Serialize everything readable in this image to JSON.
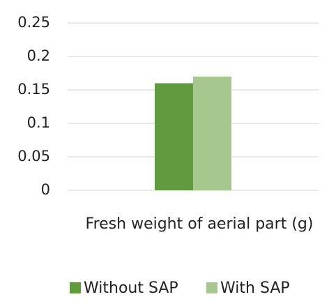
{
  "chart_data": {
    "type": "bar",
    "categories": [
      "Fresh weight of aerial part (g)"
    ],
    "series": [
      {
        "name": "Without SAP",
        "color": "#629a3f",
        "values": [
          0.16
        ]
      },
      {
        "name": "With SAP",
        "color": "#a6c88f",
        "values": [
          0.17
        ]
      }
    ],
    "ylim": [
      0,
      0.25
    ],
    "yticks": [
      0,
      0.05,
      0.1,
      0.15,
      0.2,
      0.25
    ],
    "grid": true,
    "legend": "bottom"
  }
}
